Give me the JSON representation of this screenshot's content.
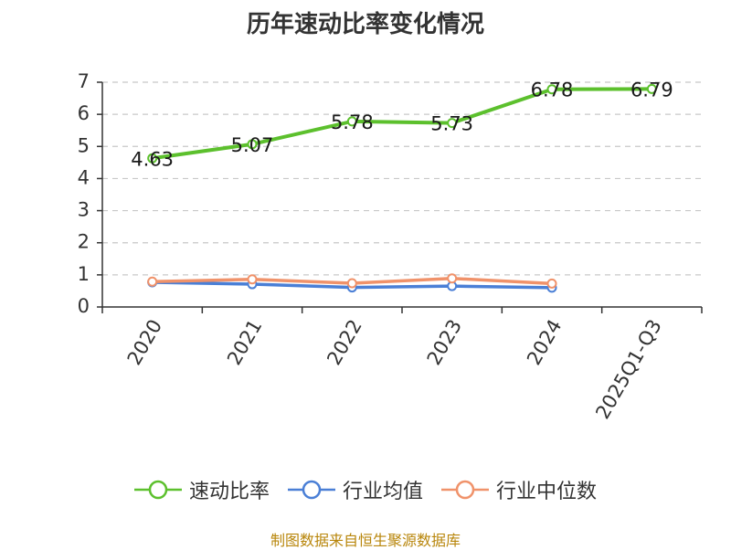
{
  "chart_data": {
    "type": "line",
    "title": "历年速动比率变化情况",
    "categories": [
      "2020",
      "2021",
      "2022",
      "2023",
      "2024",
      "2025Q1-Q3"
    ],
    "yticks": [
      "0",
      "1",
      "2",
      "3",
      "4",
      "5",
      "6",
      "7"
    ],
    "ylim": [
      0,
      7
    ],
    "grid": true,
    "legend_position": "bottom",
    "series": [
      {
        "name": "速动比率",
        "color": "#5cc02d",
        "values": [
          4.63,
          5.07,
          5.78,
          5.73,
          6.78,
          6.79
        ],
        "labels": [
          "4.63",
          "5.07",
          "5.78",
          "5.73",
          "6.78",
          "6.79"
        ],
        "show_labels": true
      },
      {
        "name": "行业均值",
        "color": "#4a7fd6",
        "values": [
          0.77,
          0.71,
          0.61,
          0.65,
          0.6,
          null
        ],
        "show_labels": false
      },
      {
        "name": "行业中位数",
        "color": "#f0926a",
        "values": [
          0.79,
          0.86,
          0.74,
          0.89,
          0.73,
          null
        ],
        "show_labels": false
      }
    ]
  },
  "source_note": "制图数据来自恒生聚源数据库"
}
